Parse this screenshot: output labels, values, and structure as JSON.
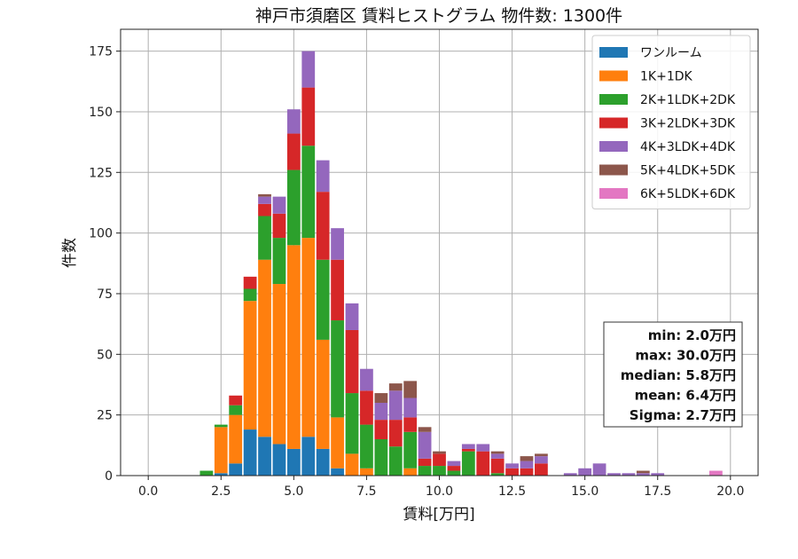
{
  "chart_data": {
    "type": "bar",
    "stacked": true,
    "title": "神戸市須磨区 賃料ヒストグラム  物件数: 1300件",
    "xlabel": "賃料[万円]",
    "ylabel": "件数",
    "xlim": [
      -0.95,
      20.95
    ],
    "ylim": [
      0,
      184
    ],
    "xticks": [
      "0.0",
      "2.5",
      "5.0",
      "7.5",
      "10.0",
      "12.5",
      "15.0",
      "17.5",
      "20.0"
    ],
    "yticks": [
      "0",
      "25",
      "50",
      "75",
      "100",
      "125",
      "150",
      "175"
    ],
    "grid": true,
    "legend_position": "top-right",
    "bin_width": 0.5,
    "x": [
      2.0,
      2.5,
      3.0,
      3.5,
      4.0,
      4.5,
      5.0,
      5.5,
      6.0,
      6.5,
      7.0,
      7.5,
      8.0,
      8.5,
      9.0,
      9.5,
      10.0,
      10.5,
      11.0,
      11.5,
      12.0,
      12.5,
      13.0,
      13.5,
      14.5,
      15.0,
      15.5,
      16.0,
      16.5,
      17.0,
      17.5,
      19.5
    ],
    "series": [
      {
        "name": "ワンルーム",
        "color": "#1f77b4",
        "values": [
          0,
          1,
          5,
          19,
          16,
          13,
          11,
          16,
          11,
          3,
          0,
          0,
          0,
          0,
          0,
          0,
          0,
          0,
          0,
          0,
          0,
          0,
          0,
          0,
          0,
          0,
          0,
          0,
          0,
          0,
          0,
          0
        ]
      },
      {
        "name": "1K+1DK",
        "color": "#ff7f0e",
        "values": [
          0,
          19,
          20,
          53,
          73,
          66,
          84,
          82,
          45,
          21,
          9,
          3,
          0,
          0,
          3,
          0,
          0,
          0,
          0,
          0,
          0,
          0,
          0,
          0,
          0,
          0,
          0,
          0,
          0,
          0,
          0,
          0
        ]
      },
      {
        "name": "2K+1LDK+2DK",
        "color": "#2ca02c",
        "values": [
          2,
          1,
          4,
          5,
          18,
          19,
          31,
          38,
          33,
          40,
          25,
          18,
          15,
          12,
          15,
          4,
          4,
          2,
          10,
          0,
          1,
          0,
          0,
          0,
          0,
          0,
          0,
          0,
          0,
          0,
          0,
          0
        ]
      },
      {
        "name": "3K+2LDK+3DK",
        "color": "#d62728",
        "values": [
          0,
          0,
          4,
          5,
          5,
          10,
          15,
          24,
          28,
          25,
          26,
          14,
          8,
          11,
          6,
          3,
          5,
          2,
          1,
          10,
          6,
          3,
          3,
          5,
          0,
          0,
          0,
          0,
          0,
          0,
          0,
          0
        ]
      },
      {
        "name": "4K+3LDK+4DK",
        "color": "#9467bd",
        "values": [
          0,
          0,
          0,
          0,
          3,
          7,
          10,
          15,
          13,
          13,
          11,
          9,
          7,
          12,
          8,
          11,
          0,
          2,
          2,
          3,
          2,
          2,
          3,
          3,
          1,
          3,
          5,
          1,
          1,
          1,
          1,
          0
        ]
      },
      {
        "name": "5K+4LDK+5DK",
        "color": "#8c564b",
        "values": [
          0,
          0,
          0,
          0,
          1,
          0,
          0,
          0,
          0,
          0,
          0,
          0,
          4,
          3,
          7,
          2,
          1,
          0,
          0,
          0,
          1,
          0,
          2,
          1,
          0,
          0,
          0,
          0,
          0,
          1,
          0,
          0
        ]
      },
      {
        "name": "6K+5LDK+6DK",
        "color": "#e377c2",
        "values": [
          0,
          0,
          0,
          0,
          0,
          0,
          0,
          0,
          0,
          0,
          0,
          0,
          0,
          0,
          0,
          0,
          0,
          0,
          0,
          0,
          0,
          0,
          0,
          0,
          0,
          0,
          0,
          0,
          0,
          0,
          0,
          2
        ]
      }
    ],
    "stats": [
      "min: 2.0万円",
      "max: 30.0万円",
      "median: 5.8万円",
      "mean: 6.4万円",
      "Sigma: 2.7万円"
    ]
  }
}
